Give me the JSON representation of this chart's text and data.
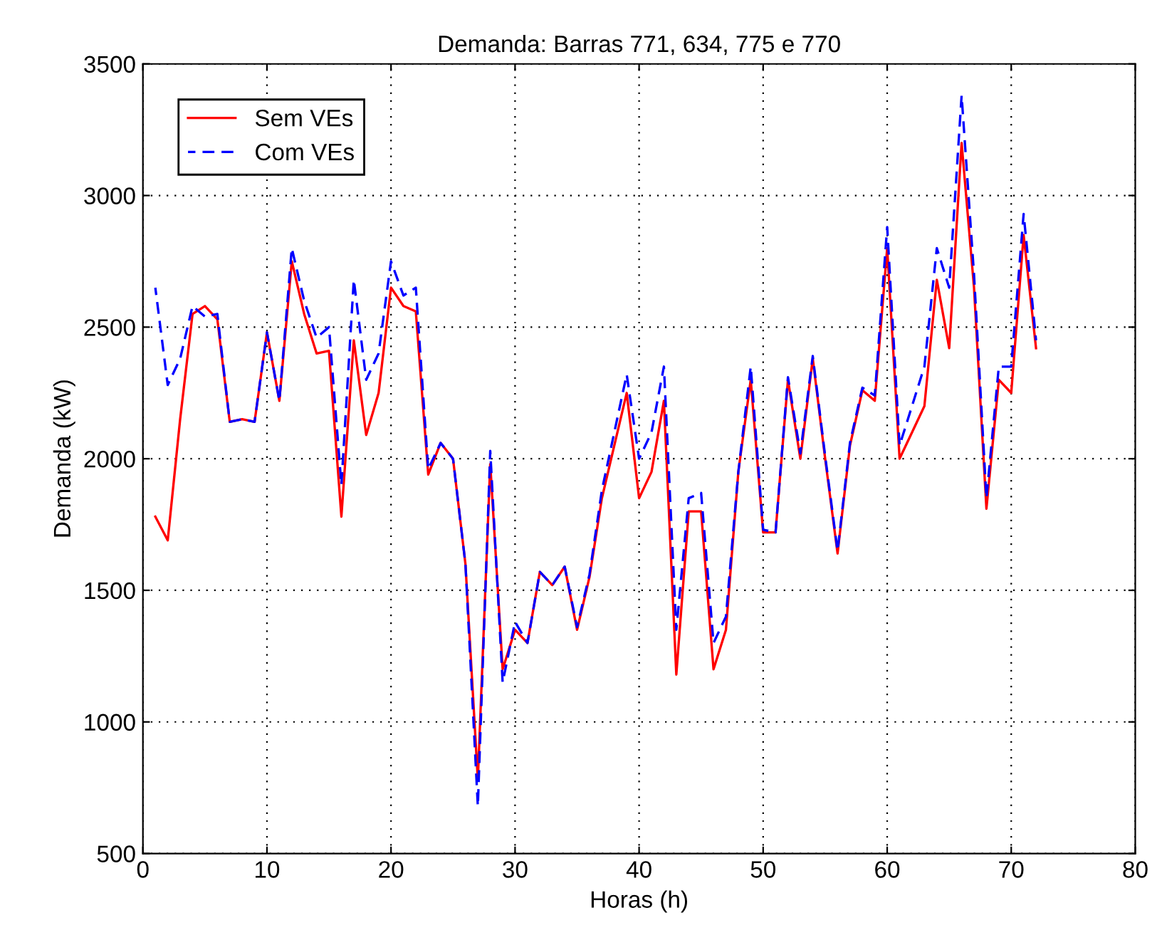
{
  "chart_data": {
    "type": "line",
    "title": "Demanda: Barras 771, 634, 775 e 770",
    "xlabel": "Horas (h)",
    "ylabel": "Demanda (kW)",
    "x": [
      1,
      2,
      3,
      4,
      5,
      6,
      7,
      8,
      9,
      10,
      11,
      12,
      13,
      14,
      15,
      16,
      17,
      18,
      19,
      20,
      21,
      22,
      23,
      24,
      25,
      26,
      27,
      28,
      29,
      30,
      31,
      32,
      33,
      34,
      35,
      36,
      37,
      38,
      39,
      40,
      41,
      42,
      43,
      44,
      45,
      46,
      47,
      48,
      49,
      50,
      51,
      52,
      53,
      54,
      55,
      56,
      57,
      58,
      59,
      60,
      61,
      62,
      63,
      64,
      65,
      66,
      67,
      68,
      69,
      70,
      71,
      72
    ],
    "series": [
      {
        "name": "Sem VEs",
        "color": "#ff0000",
        "line_style": "solid",
        "values": [
          1780,
          1690,
          2150,
          2550,
          2580,
          2530,
          2140,
          2150,
          2140,
          2480,
          2220,
          2750,
          2550,
          2400,
          2410,
          1780,
          2450,
          2090,
          2250,
          2650,
          2580,
          2560,
          1940,
          2060,
          2000,
          1600,
          780,
          1980,
          1200,
          1350,
          1300,
          1570,
          1520,
          1590,
          1350,
          1550,
          1850,
          2050,
          2250,
          1850,
          1950,
          2220,
          1180,
          1800,
          1800,
          1200,
          1350,
          1950,
          2300,
          1720,
          1720,
          2300,
          2000,
          2380,
          2000,
          1640,
          2050,
          2260,
          2220,
          2800,
          2000,
          2100,
          2200,
          2680,
          2420,
          3200,
          2650,
          1810,
          2300,
          2250,
          2850,
          2420
        ]
      },
      {
        "name": "Com VEs",
        "color": "#0000ff",
        "line_style": "dashed",
        "values": [
          2650,
          2280,
          2380,
          2580,
          2540,
          2550,
          2140,
          2150,
          2140,
          2480,
          2220,
          2800,
          2600,
          2460,
          2500,
          1900,
          2680,
          2300,
          2400,
          2750,
          2620,
          2650,
          1960,
          2060,
          2000,
          1600,
          680,
          2030,
          1150,
          1380,
          1300,
          1570,
          1520,
          1590,
          1360,
          1560,
          1880,
          2100,
          2320,
          2000,
          2100,
          2350,
          1350,
          1850,
          1870,
          1300,
          1400,
          1950,
          2350,
          1730,
          1720,
          2310,
          2020,
          2390,
          2010,
          1650,
          2060,
          2270,
          2240,
          2880,
          2050,
          2200,
          2350,
          2800,
          2650,
          3380,
          2700,
          1850,
          2350,
          2350,
          2930,
          2450
        ]
      }
    ],
    "xlim": [
      0,
      80
    ],
    "xticks": [
      0,
      10,
      20,
      30,
      40,
      50,
      60,
      70,
      80
    ],
    "ylim": [
      500,
      3500
    ],
    "yticks": [
      500,
      1000,
      1500,
      2000,
      2500,
      3000,
      3500
    ],
    "grid": true,
    "legend": "top left"
  }
}
